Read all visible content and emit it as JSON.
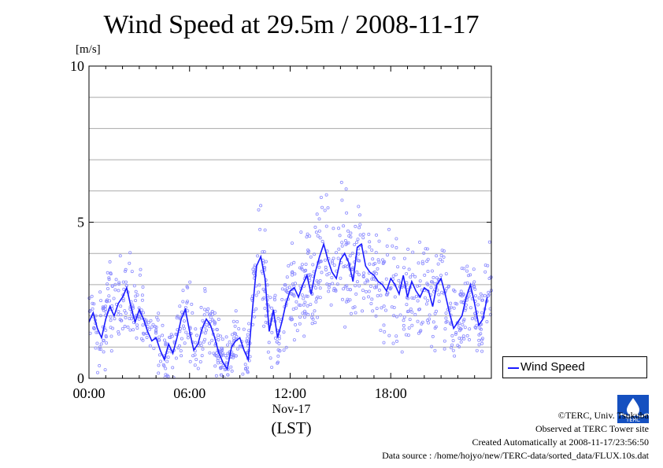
{
  "chart_data": {
    "type": "scatter",
    "title": "Wind Speed at 29.5m / 2008-11-17",
    "ylabel": "[m/s]",
    "ylim": [
      0,
      10
    ],
    "xlim": [
      0,
      24
    ],
    "yticks": [
      "0",
      "5",
      "10"
    ],
    "xticks": [
      "00:00",
      "06:00",
      "12:00",
      "18:00"
    ],
    "xlabel_date": "Nov-17",
    "xlabel_unit": "(LST)",
    "grid": true,
    "legend": "bottom-right (outside plot)",
    "series": [
      {
        "name": "Wind Speed",
        "color": "#1a1aff",
        "scatter_color": "#8c8cff",
        "hours": [
          0.0,
          0.25,
          0.5,
          0.75,
          1.0,
          1.25,
          1.5,
          1.75,
          2.0,
          2.25,
          2.5,
          2.75,
          3.0,
          3.25,
          3.5,
          3.75,
          4.0,
          4.25,
          4.5,
          4.75,
          5.0,
          5.25,
          5.5,
          5.75,
          6.0,
          6.25,
          6.5,
          6.75,
          7.0,
          7.25,
          7.5,
          7.75,
          8.0,
          8.25,
          8.5,
          8.75,
          9.0,
          9.25,
          9.5,
          9.75,
          10.0,
          10.25,
          10.5,
          10.75,
          11.0,
          11.25,
          11.5,
          11.75,
          12.0,
          12.25,
          12.5,
          12.75,
          13.0,
          13.25,
          13.5,
          13.75,
          14.0,
          14.25,
          14.5,
          14.75,
          15.0,
          15.25,
          15.5,
          15.75,
          16.0,
          16.25,
          16.5,
          16.75,
          17.0,
          17.25,
          17.5,
          17.75,
          18.0,
          18.25,
          18.5,
          18.75,
          19.0,
          19.25,
          19.5,
          19.75,
          20.0,
          20.25,
          20.5,
          20.75,
          21.0,
          21.25,
          21.5,
          21.75,
          22.0,
          22.25,
          22.5,
          22.75,
          23.0,
          23.25,
          23.5,
          23.75
        ],
        "mean_values": [
          1.8,
          2.1,
          1.6,
          1.3,
          1.9,
          2.3,
          2.0,
          2.4,
          2.6,
          2.9,
          2.3,
          1.8,
          2.2,
          1.9,
          1.5,
          1.2,
          1.3,
          0.9,
          0.6,
          1.1,
          0.8,
          1.3,
          1.9,
          2.2,
          1.5,
          0.9,
          1.1,
          1.6,
          1.9,
          1.7,
          1.3,
          0.8,
          0.5,
          0.3,
          1.0,
          1.2,
          1.3,
          0.9,
          0.6,
          2.2,
          3.6,
          3.9,
          3.2,
          1.5,
          2.2,
          1.3,
          1.8,
          2.4,
          2.8,
          2.9,
          2.6,
          3.0,
          3.3,
          2.7,
          3.4,
          3.9,
          4.3,
          3.8,
          3.4,
          3.2,
          3.8,
          4.0,
          3.7,
          3.1,
          4.2,
          4.3,
          3.6,
          3.4,
          3.3,
          3.1,
          3.0,
          2.8,
          3.2,
          3.0,
          2.7,
          3.3,
          2.6,
          3.1,
          2.8,
          2.6,
          2.9,
          2.8,
          2.3,
          3.0,
          3.2,
          2.7,
          2.1,
          1.6,
          1.8,
          2.0,
          2.6,
          3.0,
          2.4,
          1.7,
          1.9,
          2.6
        ]
      }
    ]
  },
  "credits": {
    "line1": "©TERC, Univ. Tsukuba",
    "line2": "Observed at TERC Tower site",
    "line3": "Created Automatically at 2008-11-17/23:56:50",
    "line4": "Data source : /home/hojyo/new/TERC-data/sorted_data/FLUX.10s.dat",
    "logo_text": "TERC"
  }
}
